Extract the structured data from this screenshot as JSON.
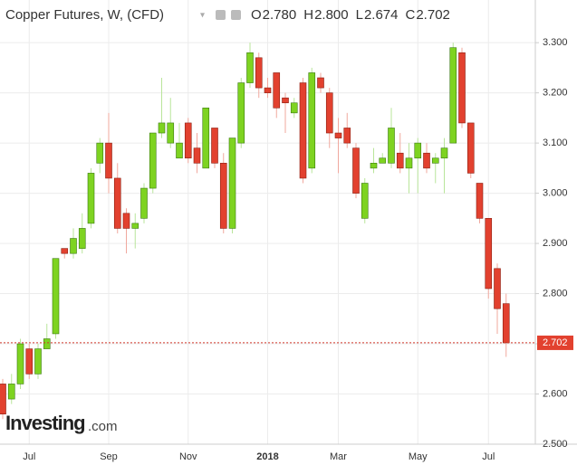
{
  "header": {
    "title": "Copper Futures, W, (CFD)",
    "ohlc": [
      {
        "label": "O",
        "value": "2.780"
      },
      {
        "label": "H",
        "value": "2.800"
      },
      {
        "label": "L",
        "value": "2.674"
      },
      {
        "label": "C",
        "value": "2.702"
      }
    ]
  },
  "logo": {
    "name": "Investing",
    "suffix": ".com"
  },
  "chart_data": {
    "type": "candlestick",
    "categories": [
      null,
      null,
      null,
      "Jul",
      null,
      null,
      null,
      null,
      null,
      null,
      null,
      null,
      "Sep",
      null,
      null,
      null,
      null,
      null,
      null,
      null,
      null,
      "Nov",
      null,
      null,
      null,
      null,
      null,
      null,
      null,
      null,
      "2018",
      null,
      null,
      null,
      null,
      null,
      null,
      null,
      "Mar",
      null,
      null,
      null,
      null,
      null,
      null,
      null,
      null,
      "May",
      null,
      null,
      null,
      null,
      null,
      null,
      null,
      "Jul",
      null,
      null
    ],
    "open": [
      2.62,
      2.59,
      2.62,
      2.69,
      2.64,
      2.69,
      2.72,
      2.89,
      2.88,
      2.89,
      2.94,
      3.06,
      3.1,
      3.03,
      2.96,
      2.93,
      2.95,
      3.01,
      3.12,
      3.1,
      3.07,
      3.14,
      3.09,
      3.05,
      3.13,
      3.06,
      2.93,
      3.1,
      3.22,
      3.27,
      3.21,
      3.24,
      3.19,
      3.16,
      3.22,
      3.05,
      3.23,
      3.2,
      3.12,
      3.13,
      3.09,
      2.95,
      3.05,
      3.06,
      3.06,
      3.08,
      3.05,
      3.07,
      3.08,
      3.06,
      3.07,
      3.1,
      3.28,
      3.14,
      3.02,
      2.95,
      2.85,
      2.78
    ],
    "high": [
      2.63,
      2.64,
      2.71,
      2.7,
      2.7,
      2.74,
      2.87,
      2.89,
      2.93,
      2.96,
      3.05,
      3.11,
      3.16,
      3.06,
      2.97,
      2.96,
      3.02,
      3.12,
      3.23,
      3.19,
      3.14,
      3.15,
      3.12,
      3.17,
      3.13,
      3.08,
      3.11,
      3.23,
      3.3,
      3.28,
      3.23,
      3.24,
      3.2,
      3.19,
      3.23,
      3.25,
      3.24,
      3.21,
      3.15,
      3.16,
      3.1,
      3.03,
      3.09,
      3.08,
      3.17,
      3.12,
      3.1,
      3.11,
      3.1,
      3.08,
      3.11,
      3.3,
      3.29,
      3.14,
      3.02,
      2.95,
      2.86,
      2.8
    ],
    "low": [
      2.55,
      2.58,
      2.61,
      2.63,
      2.63,
      2.69,
      2.71,
      2.87,
      2.87,
      2.88,
      2.93,
      3.04,
      3.0,
      2.92,
      2.88,
      2.89,
      2.94,
      3.0,
      3.11,
      3.09,
      3.07,
      3.06,
      3.04,
      3.05,
      3.05,
      2.92,
      2.92,
      3.09,
      3.21,
      3.19,
      3.19,
      3.15,
      3.12,
      3.15,
      3.02,
      3.04,
      3.2,
      3.09,
      3.04,
      3.09,
      2.99,
      2.94,
      3.04,
      3.06,
      3.05,
      3.04,
      3.0,
      3.0,
      3.04,
      3.02,
      3.0,
      3.1,
      3.13,
      3.03,
      2.94,
      2.79,
      2.72,
      2.674
    ],
    "close": [
      2.56,
      2.62,
      2.7,
      2.64,
      2.69,
      2.71,
      2.87,
      2.88,
      2.91,
      2.93,
      3.04,
      3.1,
      3.03,
      2.93,
      2.93,
      2.94,
      3.01,
      3.12,
      3.14,
      3.14,
      3.1,
      3.07,
      3.06,
      3.17,
      3.06,
      2.93,
      3.11,
      3.22,
      3.28,
      3.21,
      3.2,
      3.17,
      3.18,
      3.18,
      3.03,
      3.24,
      3.21,
      3.12,
      3.11,
      3.1,
      3.0,
      3.02,
      3.06,
      3.07,
      3.13,
      3.05,
      3.07,
      3.1,
      3.05,
      3.07,
      3.09,
      3.29,
      3.14,
      3.04,
      2.95,
      2.81,
      2.77,
      2.702
    ],
    "up_color": "#7ed321",
    "down_color": "#e2412f",
    "ylim": [
      2.5,
      3.385
    ],
    "yticks": [
      {
        "value": 2.5,
        "label": "2.500"
      },
      {
        "value": 2.6,
        "label": "2.600"
      },
      {
        "value": 2.7,
        "label": "2.700"
      },
      {
        "value": 2.8,
        "label": "2.800"
      },
      {
        "value": 2.9,
        "label": "2.900"
      },
      {
        "value": 3.0,
        "label": "3.000"
      },
      {
        "value": 3.1,
        "label": "3.100"
      },
      {
        "value": 3.2,
        "label": "3.200"
      },
      {
        "value": 3.3,
        "label": "3.300"
      }
    ],
    "last_price": {
      "value": 2.702,
      "label": "2.702"
    },
    "grid": true
  }
}
